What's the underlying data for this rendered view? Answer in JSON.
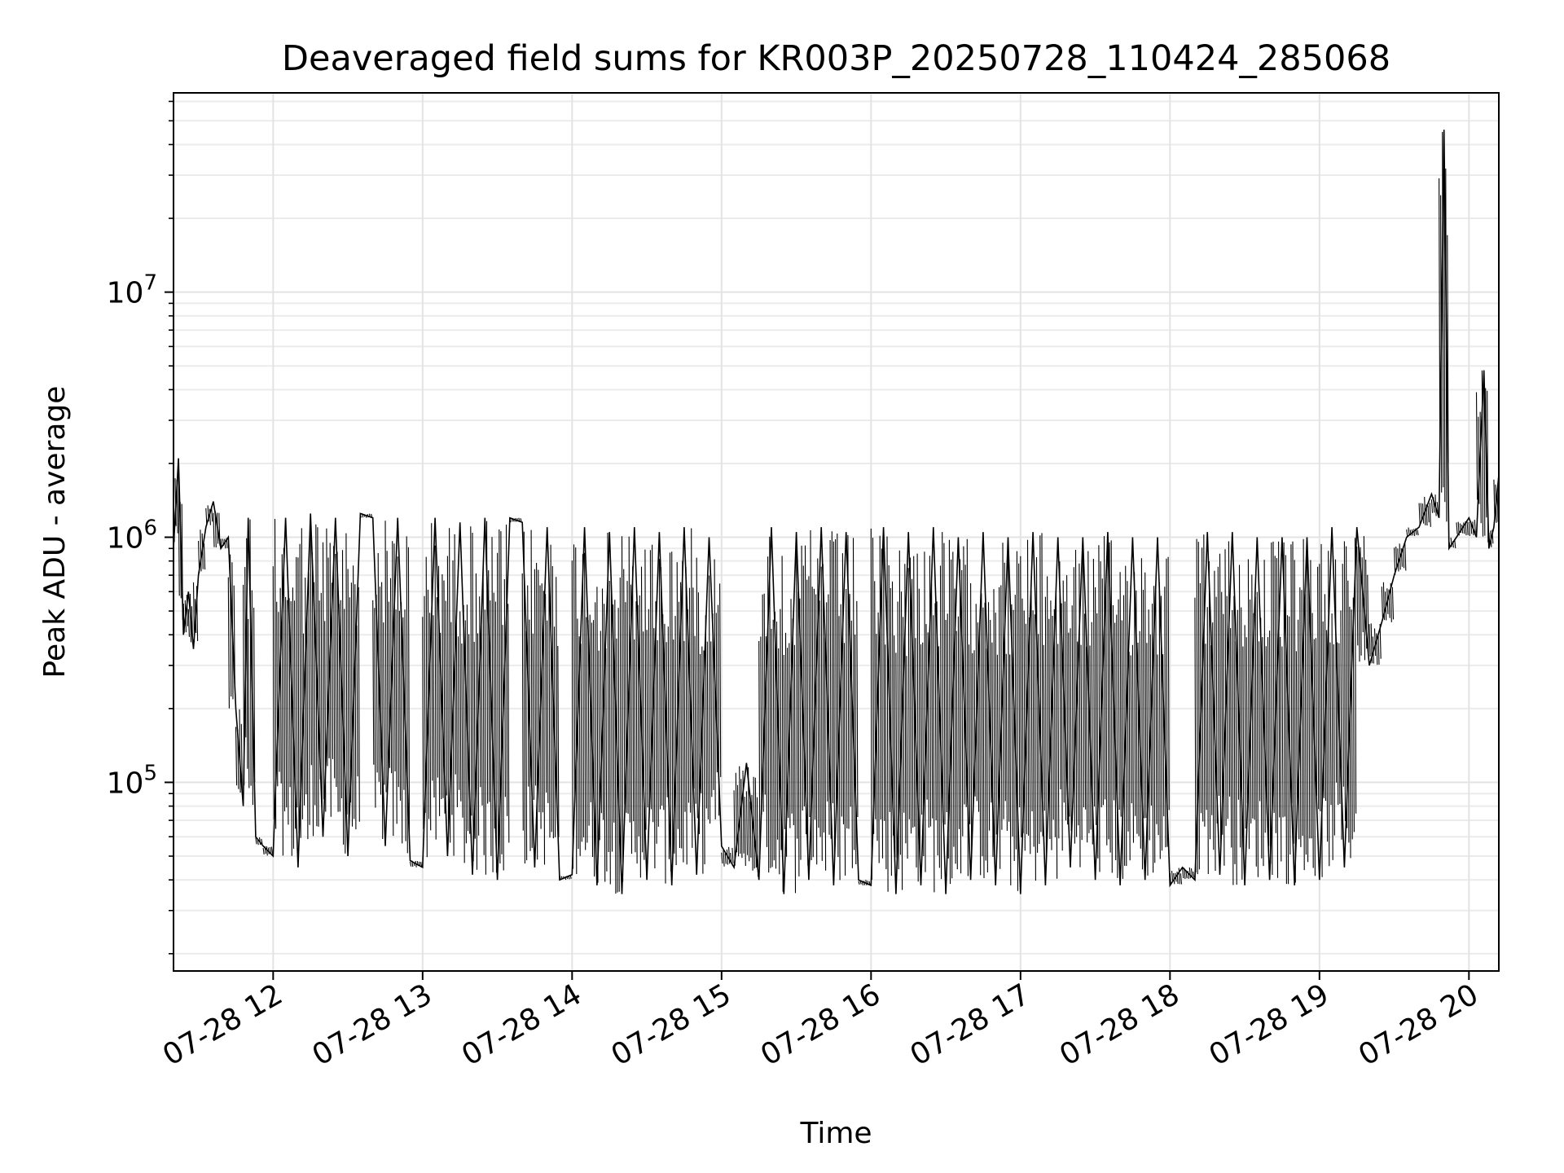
{
  "chart_data": {
    "type": "line",
    "title": "Deaveraged field sums for KR003P_20250728_110424_285068",
    "xlabel": "Time",
    "ylabel": "Peak ADU - average",
    "x_type": "datetime",
    "xlim": [
      "2025-07-28 11:20",
      "2025-07-28 20:12"
    ],
    "ylim": [
      17000,
      65000000
    ],
    "yscale": "log",
    "grid": true,
    "line_color": "#000000",
    "x_ticks": [
      {
        "value": "2025-07-28 12:00",
        "label": "07-28 12"
      },
      {
        "value": "2025-07-28 13:00",
        "label": "07-28 13"
      },
      {
        "value": "2025-07-28 14:00",
        "label": "07-28 14"
      },
      {
        "value": "2025-07-28 15:00",
        "label": "07-28 15"
      },
      {
        "value": "2025-07-28 16:00",
        "label": "07-28 16"
      },
      {
        "value": "2025-07-28 17:00",
        "label": "07-28 17"
      },
      {
        "value": "2025-07-28 18:00",
        "label": "07-28 18"
      },
      {
        "value": "2025-07-28 19:00",
        "label": "07-28 19"
      },
      {
        "value": "2025-07-28 20:00",
        "label": "07-28 20"
      }
    ],
    "y_ticks": [
      {
        "value": 100000,
        "base": "10",
        "exp": "5"
      },
      {
        "value": 1000000,
        "base": "10",
        "exp": "6"
      },
      {
        "value": 10000000,
        "base": "10",
        "exp": "7"
      }
    ],
    "series": [
      {
        "x": [
          "2025-07-28 11:20",
          "2025-07-28 11:22",
          "2025-07-28 11:24",
          "2025-07-28 11:26",
          "2025-07-28 11:28",
          "2025-07-28 11:30",
          "2025-07-28 11:33",
          "2025-07-28 11:36",
          "2025-07-28 11:39",
          "2025-07-28 11:42",
          "2025-07-28 11:45",
          "2025-07-28 11:48",
          "2025-07-28 11:50",
          "2025-07-28 11:53",
          "2025-07-28 11:56",
          "2025-07-28 12:00",
          "2025-07-28 12:05",
          "2025-07-28 12:10",
          "2025-07-28 12:15",
          "2025-07-28 12:20",
          "2025-07-28 12:25",
          "2025-07-28 12:30",
          "2025-07-28 12:35",
          "2025-07-28 12:40",
          "2025-07-28 12:45",
          "2025-07-28 12:50",
          "2025-07-28 12:55",
          "2025-07-28 13:00",
          "2025-07-28 13:05",
          "2025-07-28 13:10",
          "2025-07-28 13:15",
          "2025-07-28 13:20",
          "2025-07-28 13:25",
          "2025-07-28 13:30",
          "2025-07-28 13:35",
          "2025-07-28 13:40",
          "2025-07-28 13:45",
          "2025-07-28 13:50",
          "2025-07-28 13:55",
          "2025-07-28 14:00",
          "2025-07-28 14:05",
          "2025-07-28 14:10",
          "2025-07-28 14:15",
          "2025-07-28 14:20",
          "2025-07-28 14:25",
          "2025-07-28 14:30",
          "2025-07-28 14:35",
          "2025-07-28 14:40",
          "2025-07-28 14:45",
          "2025-07-28 14:50",
          "2025-07-28 14:55",
          "2025-07-28 15:00",
          "2025-07-28 15:05",
          "2025-07-28 15:10",
          "2025-07-28 15:15",
          "2025-07-28 15:20",
          "2025-07-28 15:25",
          "2025-07-28 15:30",
          "2025-07-28 15:35",
          "2025-07-28 15:40",
          "2025-07-28 15:45",
          "2025-07-28 15:50",
          "2025-07-28 15:55",
          "2025-07-28 16:00",
          "2025-07-28 16:05",
          "2025-07-28 16:10",
          "2025-07-28 16:15",
          "2025-07-28 16:20",
          "2025-07-28 16:25",
          "2025-07-28 16:30",
          "2025-07-28 16:35",
          "2025-07-28 16:40",
          "2025-07-28 16:45",
          "2025-07-28 16:50",
          "2025-07-28 16:55",
          "2025-07-28 17:00",
          "2025-07-28 17:05",
          "2025-07-28 17:10",
          "2025-07-28 17:15",
          "2025-07-28 17:20",
          "2025-07-28 17:25",
          "2025-07-28 17:30",
          "2025-07-28 17:35",
          "2025-07-28 17:40",
          "2025-07-28 17:45",
          "2025-07-28 17:50",
          "2025-07-28 17:55",
          "2025-07-28 18:00",
          "2025-07-28 18:05",
          "2025-07-28 18:10",
          "2025-07-28 18:15",
          "2025-07-28 18:20",
          "2025-07-28 18:25",
          "2025-07-28 18:30",
          "2025-07-28 18:35",
          "2025-07-28 18:40",
          "2025-07-28 18:45",
          "2025-07-28 18:50",
          "2025-07-28 18:55",
          "2025-07-28 19:00",
          "2025-07-28 19:05",
          "2025-07-28 19:10",
          "2025-07-28 19:15",
          "2025-07-28 19:20",
          "2025-07-28 19:25",
          "2025-07-28 19:30",
          "2025-07-28 19:35",
          "2025-07-28 19:40",
          "2025-07-28 19:45",
          "2025-07-28 19:48",
          "2025-07-28 19:50",
          "2025-07-28 19:52",
          "2025-07-28 19:55",
          "2025-07-28 20:00",
          "2025-07-28 20:03",
          "2025-07-28 20:06",
          "2025-07-28 20:08",
          "2025-07-28 20:10",
          "2025-07-28 20:12"
        ],
        "y": [
          900000,
          2100000,
          400000,
          600000,
          350000,
          700000,
          1100000,
          1400000,
          900000,
          1000000,
          200000,
          80000,
          1200000,
          60000,
          55000,
          50000,
          1200000,
          45000,
          1250000,
          60000,
          1200000,
          50000,
          1250000,
          1200000,
          55000,
          1200000,
          48000,
          45000,
          1200000,
          50000,
          1150000,
          42000,
          1200000,
          40000,
          1200000,
          1150000,
          45000,
          1100000,
          40000,
          42000,
          1100000,
          38000,
          1050000,
          35000,
          1100000,
          40000,
          1050000,
          38000,
          1100000,
          42000,
          1000000,
          55000,
          45000,
          120000,
          40000,
          1100000,
          35000,
          1050000,
          40000,
          1100000,
          38000,
          1050000,
          40000,
          38000,
          1100000,
          35000,
          1050000,
          38000,
          1100000,
          35000,
          1000000,
          40000,
          1050000,
          38000,
          1000000,
          35000,
          1050000,
          38000,
          1000000,
          45000,
          1000000,
          40000,
          1050000,
          38000,
          1000000,
          40000,
          1000000,
          38000,
          45000,
          40000,
          1050000,
          42000,
          1050000,
          38000,
          1000000,
          40000,
          1000000,
          38000,
          1000000,
          40000,
          1100000,
          45000,
          1100000,
          300000,
          450000,
          700000,
          1000000,
          1100000,
          1500000,
          1200000,
          46000000,
          900000,
          1000000,
          1200000,
          1000000,
          4800000,
          900000,
          1100000,
          1800000
        ]
      }
    ]
  }
}
